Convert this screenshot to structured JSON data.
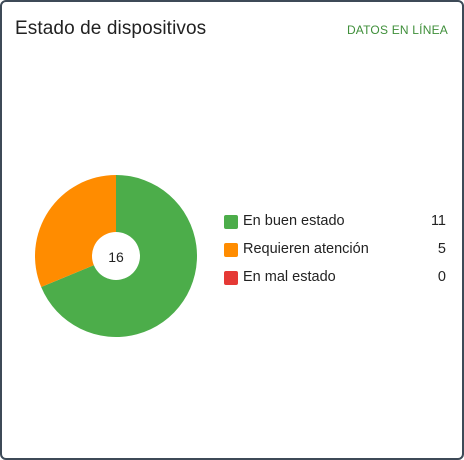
{
  "card": {
    "title": "Estado de dispositivos",
    "live_label": "DATOS EN LÍNEA"
  },
  "colors": {
    "good": "#4cad4a",
    "attention": "#ff8c00",
    "bad": "#e53935",
    "live_text": "#3f8f3a"
  },
  "chart_data": {
    "type": "pie",
    "center_label": "16",
    "slices": [
      {
        "label": "En buen estado",
        "value": 11,
        "color": "#4cad4a"
      },
      {
        "label": "Requieren atención",
        "value": 5,
        "color": "#ff8c00"
      },
      {
        "label": "En mal estado",
        "value": 0,
        "color": "#e53935"
      }
    ]
  },
  "legend": [
    {
      "label": "En buen estado",
      "value": "11",
      "color": "#4cad4a"
    },
    {
      "label": "Requieren atención",
      "value": "5",
      "color": "#ff8c00"
    },
    {
      "label": "En mal estado",
      "value": "0",
      "color": "#e53935"
    }
  ]
}
